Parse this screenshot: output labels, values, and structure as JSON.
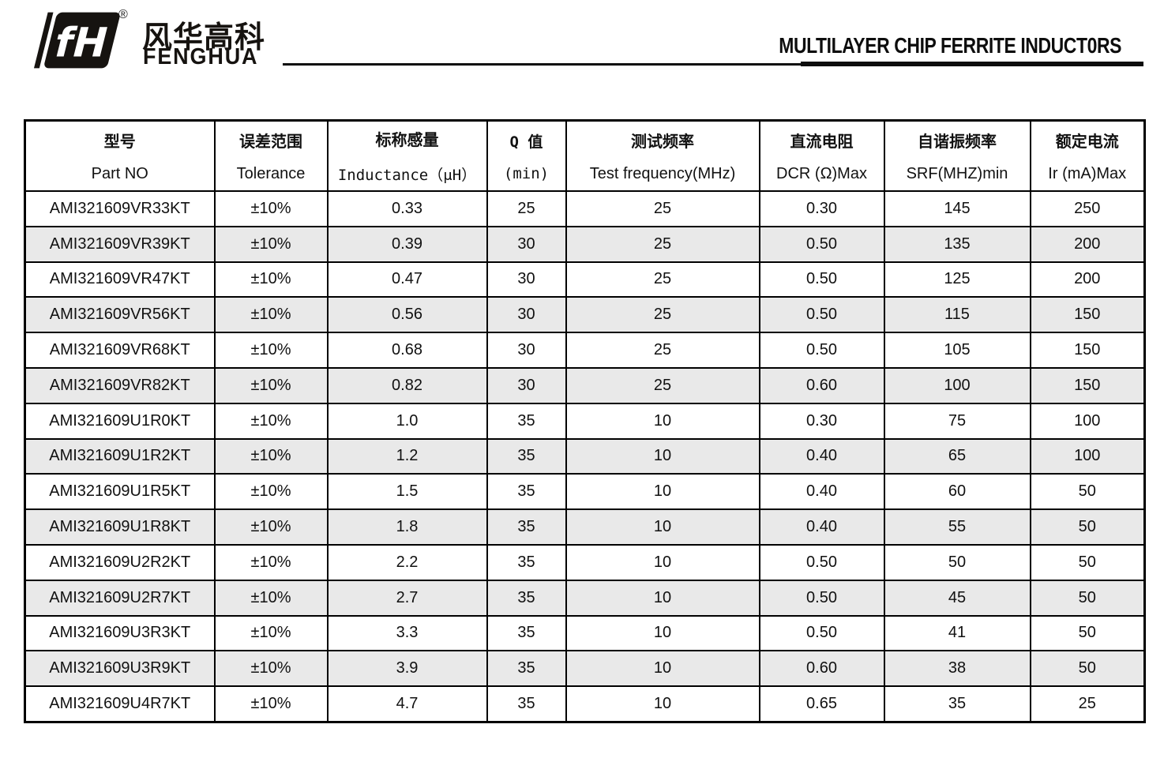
{
  "brand": {
    "logo_mark": "fH",
    "registered": "®",
    "name_cn": "风华高科",
    "name_en": "FENGHUA"
  },
  "header": {
    "title": "MULTILAYER CHIP FERRITE INDUCT0RS"
  },
  "colors": {
    "ink": "#111111",
    "border": "#000000",
    "row_alt": "#e9e9e9"
  },
  "table": {
    "columns": [
      {
        "cn": "型号",
        "en": "Part NO"
      },
      {
        "cn": "误差范围",
        "en": "Tolerance"
      },
      {
        "cn": "标称感量",
        "en": "Inductance（μH）"
      },
      {
        "cn": "Q 值",
        "en": "(min)"
      },
      {
        "cn": "测试频率",
        "en": "Test frequency(MHz)"
      },
      {
        "cn": "直流电阻",
        "en": "DCR (Ω)Max"
      },
      {
        "cn": "自谐振频率",
        "en": "SRF(MHZ)min"
      },
      {
        "cn": "额定电流",
        "en": "Ir (mA)Max"
      }
    ],
    "rows": [
      [
        "AMI321609VR33KT",
        "±10%",
        "0.33",
        "25",
        "25",
        "0.30",
        "145",
        "250"
      ],
      [
        "AMI321609VR39KT",
        "±10%",
        "0.39",
        "30",
        "25",
        "0.50",
        "135",
        "200"
      ],
      [
        "AMI321609VR47KT",
        "±10%",
        "0.47",
        "30",
        "25",
        "0.50",
        "125",
        "200"
      ],
      [
        "AMI321609VR56KT",
        "±10%",
        "0.56",
        "30",
        "25",
        "0.50",
        "115",
        "150"
      ],
      [
        "AMI321609VR68KT",
        "±10%",
        "0.68",
        "30",
        "25",
        "0.50",
        "105",
        "150"
      ],
      [
        "AMI321609VR82KT",
        "±10%",
        "0.82",
        "30",
        "25",
        "0.60",
        "100",
        "150"
      ],
      [
        "AMI321609U1R0KT",
        "±10%",
        "1.0",
        "35",
        "10",
        "0.30",
        "75",
        "100"
      ],
      [
        "AMI321609U1R2KT",
        "±10%",
        "1.2",
        "35",
        "10",
        "0.40",
        "65",
        "100"
      ],
      [
        "AMI321609U1R5KT",
        "±10%",
        "1.5",
        "35",
        "10",
        "0.40",
        "60",
        "50"
      ],
      [
        "AMI321609U1R8KT",
        "±10%",
        "1.8",
        "35",
        "10",
        "0.40",
        "55",
        "50"
      ],
      [
        "AMI321609U2R2KT",
        "±10%",
        "2.2",
        "35",
        "10",
        "0.50",
        "50",
        "50"
      ],
      [
        "AMI321609U2R7KT",
        "±10%",
        "2.7",
        "35",
        "10",
        "0.50",
        "45",
        "50"
      ],
      [
        "AMI321609U3R3KT",
        "±10%",
        "3.3",
        "35",
        "10",
        "0.50",
        "41",
        "50"
      ],
      [
        "AMI321609U3R9KT",
        "±10%",
        "3.9",
        "35",
        "10",
        "0.60",
        "38",
        "50"
      ],
      [
        "AMI321609U4R7KT",
        "±10%",
        "4.7",
        "35",
        "10",
        "0.65",
        "35",
        "25"
      ]
    ]
  }
}
